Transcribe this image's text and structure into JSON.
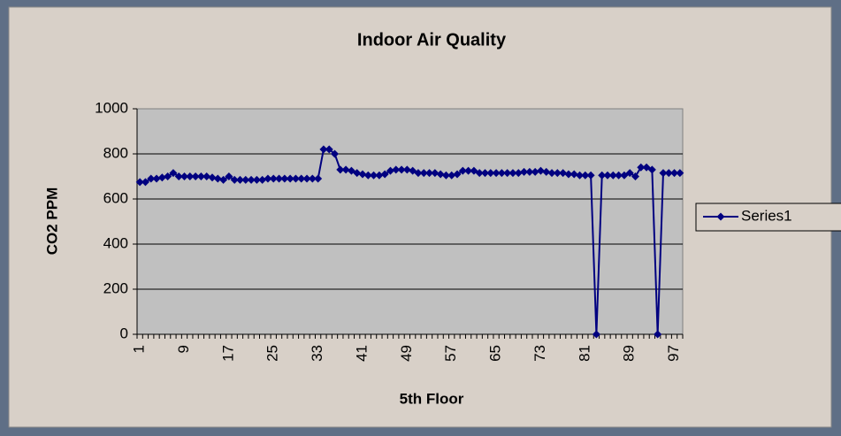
{
  "chart_data": {
    "type": "line",
    "title": "Indoor Air Quality",
    "x_label": "5th Floor",
    "y_label": "CO2 PPM",
    "categories": [
      "1",
      null,
      null,
      null,
      null,
      null,
      null,
      null,
      "9",
      null,
      null,
      null,
      null,
      null,
      null,
      null,
      "17",
      null,
      null,
      null,
      null,
      null,
      null,
      null,
      "25",
      null,
      null,
      null,
      null,
      null,
      null,
      null,
      "33",
      null,
      null,
      null,
      null,
      null,
      null,
      null,
      "41",
      null,
      null,
      null,
      null,
      null,
      null,
      null,
      "49",
      null,
      null,
      null,
      null,
      null,
      null,
      null,
      "57",
      null,
      null,
      null,
      null,
      null,
      null,
      null,
      "65",
      null,
      null,
      null,
      null,
      null,
      null,
      null,
      "73",
      null,
      null,
      null,
      null,
      null,
      null,
      null,
      "81",
      null,
      null,
      null,
      null,
      null,
      null,
      null,
      "89",
      null,
      null,
      null,
      null,
      null,
      null,
      null,
      "97",
      null
    ],
    "series": [
      {
        "name": "Series1",
        "color": "#000080",
        "values": [
          675,
          675,
          690,
          690,
          695,
          700,
          715,
          700,
          700,
          700,
          700,
          700,
          700,
          695,
          690,
          685,
          700,
          685,
          685,
          685,
          685,
          685,
          685,
          690,
          690,
          690,
          690,
          690,
          690,
          690,
          690,
          690,
          690,
          820,
          820,
          800,
          730,
          730,
          725,
          715,
          710,
          705,
          705,
          705,
          710,
          725,
          730,
          730,
          730,
          725,
          715,
          715,
          715,
          715,
          710,
          705,
          705,
          710,
          725,
          725,
          725,
          715,
          715,
          715,
          715,
          715,
          715,
          715,
          715,
          720,
          720,
          720,
          725,
          720,
          715,
          715,
          715,
          710,
          710,
          705,
          705,
          705,
          0,
          705,
          705,
          705,
          705,
          705,
          715,
          700,
          740,
          740,
          730,
          0,
          715,
          715,
          715,
          715
        ]
      }
    ],
    "ylim": [
      0,
      1000
    ],
    "yticks": [
      0,
      200,
      400,
      600,
      800,
      1000
    ],
    "grid": true,
    "legend": "right"
  }
}
